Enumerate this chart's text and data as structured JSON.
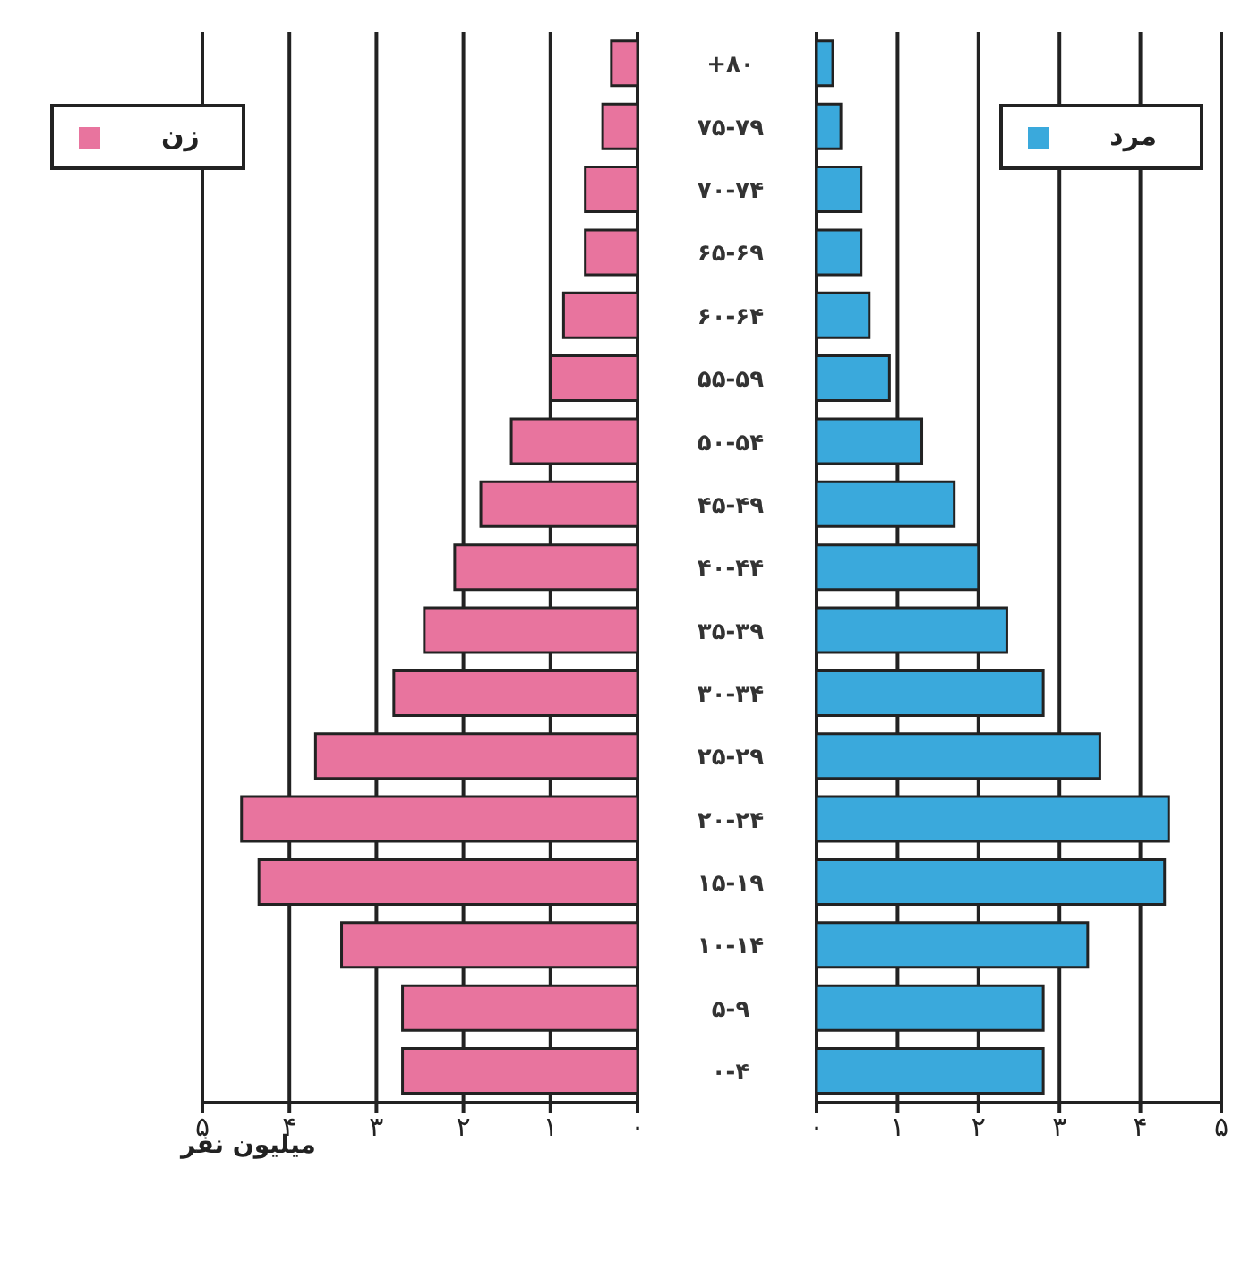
{
  "chart_data": [
    {
      "type": "bar",
      "orientation": "horizontal",
      "xlabel": "میلیون نفر",
      "legend": "top left",
      "grid": "x",
      "categories": [
        "+۸۰",
        "۷۵-۷۹",
        "۷۰-۷۴",
        "۶۵-۶۹",
        "۶۰-۶۴",
        "۵۵-۵۹",
        "۵۰-۵۴",
        "۴۵-۴۹",
        "۴۰-۴۴",
        "۳۵-۳۹",
        "۳۰-۳۴",
        "۲۵-۲۹",
        "۲۰-۲۴",
        "۱۵-۱۹",
        "۱۰-۱۴",
        "۵-۹",
        "۰-۴"
      ],
      "xlim": [
        5,
        0
      ],
      "xticks": [
        {
          "value": 5,
          "label": "۵"
        },
        {
          "value": 4,
          "label": "۴"
        },
        {
          "value": 3,
          "label": "۳"
        },
        {
          "value": 2,
          "label": "۲"
        },
        {
          "value": 1,
          "label": "۱"
        },
        {
          "value": 0,
          "label": "۰"
        }
      ],
      "series": [
        {
          "name": "زن",
          "color": "#e8749e",
          "values": [
            0.3,
            0.4,
            0.6,
            0.6,
            0.85,
            1.0,
            1.45,
            1.8,
            2.1,
            2.45,
            2.8,
            3.7,
            4.55,
            4.35,
            3.4,
            2.7,
            2.7
          ]
        }
      ]
    },
    {
      "type": "bar",
      "orientation": "horizontal",
      "legend": "top right",
      "grid": "x",
      "categories": [
        null,
        null,
        null,
        null,
        null,
        null,
        null,
        null,
        null,
        null,
        null,
        null,
        null,
        null,
        null,
        null,
        null
      ],
      "xlim": [
        0,
        5
      ],
      "xticks": [
        {
          "value": 0,
          "label": "۰"
        },
        {
          "value": 1,
          "label": "۱"
        },
        {
          "value": 2,
          "label": "۲"
        },
        {
          "value": 3,
          "label": "۳"
        },
        {
          "value": 4,
          "label": "۴"
        },
        {
          "value": 5,
          "label": "۵"
        }
      ],
      "series": [
        {
          "name": "مرد",
          "color": "#3aa9dc",
          "values": [
            0.2,
            0.3,
            0.55,
            0.55,
            0.65,
            0.9,
            1.3,
            1.7,
            2.0,
            2.35,
            2.8,
            3.5,
            4.35,
            4.3,
            3.35,
            2.8,
            2.8
          ]
        }
      ]
    }
  ]
}
